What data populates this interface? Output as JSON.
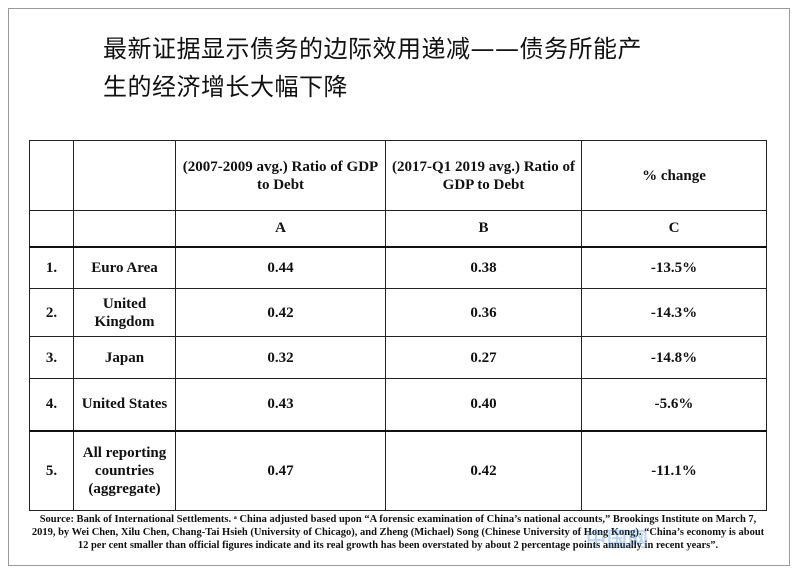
{
  "title": {
    "line1": "最新证据显示债务的边际效用递减——债务所能产",
    "line2": "生的经济增长大幅下降"
  },
  "table": {
    "headers": {
      "col_a": "(2007-2009 avg.) Ratio of GDP to Debt",
      "col_b": "(2017-Q1 2019 avg.) Ratio of GDP to Debt",
      "col_c": "% change"
    },
    "col_letters": {
      "a": "A",
      "b": "B",
      "c": "C"
    },
    "rows": [
      {
        "num": "1.",
        "country": "Euro Area",
        "a": "0.44",
        "b": "0.38",
        "c": "-13.5%"
      },
      {
        "num": "2.",
        "country": "United Kingdom",
        "a": "0.42",
        "b": "0.36",
        "c": "-14.3%"
      },
      {
        "num": "3.",
        "country": "Japan",
        "a": "0.32",
        "b": "0.27",
        "c": "-14.8%"
      },
      {
        "num": "4.",
        "country": "United States",
        "a": "0.43",
        "b": "0.40",
        "c": "-5.6%"
      },
      {
        "num": "5.",
        "country": "All reporting countries (aggregate)",
        "a": "0.47",
        "b": "0.42",
        "c": "-11.1%"
      }
    ]
  },
  "source": "Source: Bank of International Settlements. ᵃ China adjusted based upon “A forensic examination of China’s national accounts,” Brookings Institute on March 7, 2019, by Wei Chen, Xilu Chen, Chang-Tai Hsieh (University of Chicago), and Zheng (Michael) Song (Chinese University of Hong Kong). “China’s economy is about 12 per cent smaller than official figures indicate and its real growth has been overstated by about 2 percentage points annually in recent years”.",
  "watermark": "中国网"
}
